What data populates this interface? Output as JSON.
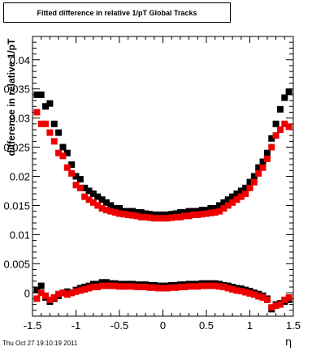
{
  "chart_data": {
    "type": "scatter",
    "title": "Fitted difference in relative 1/pT  Global Tracks",
    "xlabel": "η",
    "ylabel": "difference in relative 1/pT",
    "xlim": [
      -1.5,
      1.5
    ],
    "ylim": [
      -0.004,
      0.044
    ],
    "x_ticks": [
      "-1.5",
      "-1",
      "-0.5",
      "0",
      "0.5",
      "1",
      "1.5"
    ],
    "y_ticks": [
      "0",
      "0.005",
      "0.01",
      "0.015",
      "0.02",
      "0.025",
      "0.03",
      "0.035",
      "0.04"
    ],
    "series_colors": [
      "#000000",
      "#ee0000"
    ],
    "series": [
      {
        "x": [
          -1.45,
          -1.4,
          -1.35,
          -1.3,
          -1.25,
          -1.2,
          -1.15,
          -1.1,
          -1.05,
          -1.0,
          -0.95,
          -0.9,
          -0.85,
          -0.8,
          -0.75,
          -0.7,
          -0.65,
          -0.6,
          -0.55,
          -0.5,
          -0.45,
          -0.4,
          -0.35,
          -0.3,
          -0.25,
          -0.2,
          -0.15,
          -0.1,
          -0.05,
          0.0,
          0.05,
          0.1,
          0.15,
          0.2,
          0.25,
          0.3,
          0.35,
          0.4,
          0.45,
          0.5,
          0.55,
          0.6,
          0.65,
          0.7,
          0.75,
          0.8,
          0.85,
          0.9,
          0.95,
          1.0,
          1.05,
          1.1,
          1.15,
          1.2,
          1.25,
          1.3,
          1.35,
          1.4,
          1.45
        ],
        "values": [
          0.034,
          0.034,
          0.032,
          0.0325,
          0.029,
          0.0275,
          0.025,
          0.024,
          0.022,
          0.02,
          0.0195,
          0.018,
          0.0175,
          0.017,
          0.0165,
          0.016,
          0.0155,
          0.015,
          0.0145,
          0.0145,
          0.014,
          0.014,
          0.014,
          0.0138,
          0.0138,
          0.0136,
          0.0135,
          0.0134,
          0.0134,
          0.0134,
          0.0134,
          0.0135,
          0.0136,
          0.0138,
          0.0138,
          0.014,
          0.014,
          0.014,
          0.0142,
          0.0142,
          0.0145,
          0.0145,
          0.015,
          0.0155,
          0.016,
          0.0165,
          0.017,
          0.0175,
          0.018,
          0.019,
          0.02,
          0.0215,
          0.0225,
          0.024,
          0.0265,
          0.029,
          0.0315,
          0.0335,
          0.0345
        ]
      },
      {
        "x": [
          -1.45,
          -1.4,
          -1.35,
          -1.3,
          -1.25,
          -1.2,
          -1.15,
          -1.1,
          -1.05,
          -1.0,
          -0.95,
          -0.9,
          -0.85,
          -0.8,
          -0.75,
          -0.7,
          -0.65,
          -0.6,
          -0.55,
          -0.5,
          -0.45,
          -0.4,
          -0.35,
          -0.3,
          -0.25,
          -0.2,
          -0.15,
          -0.1,
          -0.05,
          0.0,
          0.05,
          0.1,
          0.15,
          0.2,
          0.25,
          0.3,
          0.35,
          0.4,
          0.45,
          0.5,
          0.55,
          0.6,
          0.65,
          0.7,
          0.75,
          0.8,
          0.85,
          0.9,
          0.95,
          1.0,
          1.05,
          1.1,
          1.15,
          1.2,
          1.25,
          1.3,
          1.35,
          1.4,
          1.45
        ],
        "values": [
          0.031,
          0.029,
          0.029,
          0.0275,
          0.026,
          0.024,
          0.0235,
          0.0215,
          0.0205,
          0.0185,
          0.018,
          0.0165,
          0.016,
          0.0155,
          0.015,
          0.0145,
          0.0142,
          0.014,
          0.0138,
          0.0136,
          0.0135,
          0.0134,
          0.0133,
          0.0132,
          0.013,
          0.013,
          0.0129,
          0.0128,
          0.0128,
          0.0128,
          0.0128,
          0.0129,
          0.013,
          0.013,
          0.0132,
          0.0132,
          0.0134,
          0.0134,
          0.0135,
          0.0136,
          0.0137,
          0.0138,
          0.014,
          0.0145,
          0.015,
          0.0155,
          0.016,
          0.0165,
          0.017,
          0.018,
          0.019,
          0.0205,
          0.0215,
          0.023,
          0.025,
          0.027,
          0.028,
          0.029,
          0.0285
        ]
      },
      {
        "x": [
          -1.45,
          -1.4,
          -1.35,
          -1.3,
          -1.25,
          -1.2,
          -1.15,
          -1.1,
          -1.05,
          -1.0,
          -0.95,
          -0.9,
          -0.85,
          -0.8,
          -0.75,
          -0.7,
          -0.65,
          -0.6,
          -0.55,
          -0.5,
          -0.45,
          -0.4,
          -0.35,
          -0.3,
          -0.25,
          -0.2,
          -0.15,
          -0.1,
          -0.05,
          0.0,
          0.05,
          0.1,
          0.15,
          0.2,
          0.25,
          0.3,
          0.35,
          0.4,
          0.45,
          0.5,
          0.55,
          0.6,
          0.65,
          0.7,
          0.75,
          0.8,
          0.85,
          0.9,
          0.95,
          1.0,
          1.05,
          1.1,
          1.15,
          1.2,
          1.25,
          1.3,
          1.35,
          1.4,
          1.45
        ],
        "values": [
          0.0005,
          0.0012,
          -0.0008,
          -0.0015,
          -0.001,
          -0.0005,
          0.0,
          0.0002,
          0.0,
          0.0005,
          0.0008,
          0.001,
          0.0012,
          0.0015,
          0.0015,
          0.0018,
          0.0018,
          0.0016,
          0.0016,
          0.0015,
          0.0015,
          0.0015,
          0.0015,
          0.0014,
          0.0014,
          0.0014,
          0.0013,
          0.0013,
          0.0012,
          0.0012,
          0.0012,
          0.0013,
          0.0013,
          0.0014,
          0.0014,
          0.0015,
          0.0015,
          0.0015,
          0.0016,
          0.0016,
          0.0016,
          0.0016,
          0.0015,
          0.0013,
          0.0012,
          0.001,
          0.0008,
          0.0007,
          0.0005,
          0.0003,
          0.0,
          -0.0002,
          -0.0005,
          -0.001,
          -0.0028,
          -0.002,
          -0.0018,
          -0.0015,
          -0.0012
        ]
      },
      {
        "x": [
          -1.45,
          -1.4,
          -1.35,
          -1.3,
          -1.25,
          -1.2,
          -1.15,
          -1.1,
          -1.05,
          -1.0,
          -0.95,
          -0.9,
          -0.85,
          -0.8,
          -0.75,
          -0.7,
          -0.65,
          -0.6,
          -0.55,
          -0.5,
          -0.45,
          -0.4,
          -0.35,
          -0.3,
          -0.25,
          -0.2,
          -0.15,
          -0.1,
          -0.05,
          0.0,
          0.05,
          0.1,
          0.15,
          0.2,
          0.25,
          0.3,
          0.35,
          0.4,
          0.45,
          0.5,
          0.55,
          0.6,
          0.65,
          0.7,
          0.75,
          0.8,
          0.85,
          0.9,
          0.95,
          1.0,
          1.05,
          1.1,
          1.15,
          1.2,
          1.25,
          1.3,
          1.35,
          1.4,
          1.45
        ],
        "values": [
          -0.001,
          0.0,
          -0.0005,
          -0.0012,
          -0.0008,
          -0.0002,
          0.0,
          -0.0003,
          0.0,
          0.0002,
          0.0004,
          0.0006,
          0.0008,
          0.001,
          0.001,
          0.0012,
          0.0012,
          0.0012,
          0.0012,
          0.0011,
          0.0011,
          0.0011,
          0.0011,
          0.001,
          0.001,
          0.001,
          0.0009,
          0.0009,
          0.0008,
          0.0008,
          0.0008,
          0.0009,
          0.0009,
          0.001,
          0.001,
          0.0011,
          0.0011,
          0.0011,
          0.0012,
          0.0012,
          0.0012,
          0.0012,
          0.0011,
          0.001,
          0.0008,
          0.0006,
          0.0004,
          0.0003,
          0.0001,
          -0.0001,
          -0.0003,
          -0.0006,
          -0.0008,
          -0.0012,
          -0.0025,
          -0.0022,
          -0.002,
          -0.0012,
          -0.0008
        ]
      }
    ],
    "footer": "Thu Oct 27 19:10:19 2011",
    "grid": false,
    "legend": "none"
  }
}
